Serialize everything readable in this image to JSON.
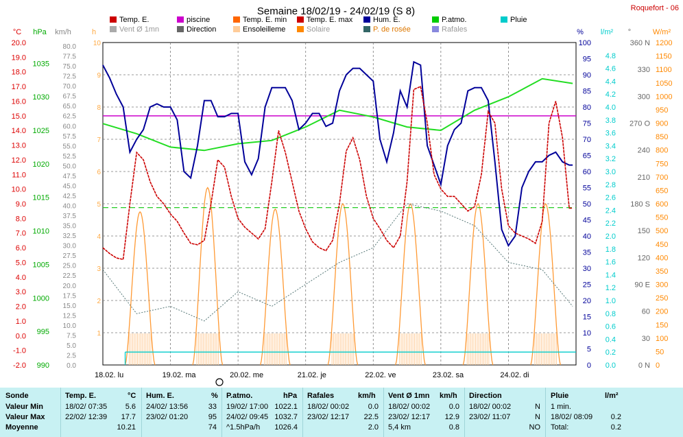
{
  "station": "Roquefort - 06",
  "chart_data": {
    "type": "line",
    "title": "Semaine 18/02/19 - 24/02/19 (S 8)",
    "x_labels": [
      "18.02. lu",
      "19.02. ma",
      "20.02. me",
      "21.02. je",
      "22.02. ve",
      "23.02. sa",
      "24.02. di"
    ],
    "grid": true,
    "legend": [
      {
        "label": "Temp. E.",
        "color": "#cc0000"
      },
      {
        "label": "piscine",
        "color": "#cc00cc"
      },
      {
        "label": "Temp. E. min",
        "color": "#ff6600"
      },
      {
        "label": "Temp. E. max",
        "color": "#cc0000"
      },
      {
        "label": "Hum. E.",
        "color": "#000099"
      },
      {
        "label": "P.atmo.",
        "color": "#00cc00"
      },
      {
        "label": "Pluie",
        "color": "#00cccc"
      },
      {
        "label": "Vent Ø 1mn",
        "color": "#aaaaaa"
      },
      {
        "label": "Direction",
        "color": "#666666"
      },
      {
        "label": "Ensoleilleme",
        "color": "#ffcc99"
      },
      {
        "label": "Solaire",
        "color": "#ff8800"
      },
      {
        "label": "P. de rosée",
        "color": "#336666"
      },
      {
        "label": "Rafales",
        "color": "#8888dd"
      }
    ],
    "axes": {
      "temp": {
        "unit": "°C",
        "color": "#dd0000",
        "min": -2,
        "max": 20,
        "ticks": [
          "20.0",
          "19.0",
          "18.0",
          "17.0",
          "16.0",
          "15.0",
          "14.0",
          "13.0",
          "12.0",
          "11.0",
          "10.0",
          "9.0",
          "8.0",
          "7.0",
          "6.0",
          "5.0",
          "4.0",
          "3.0",
          "2.0",
          "1.0",
          "0.0",
          "-1.0",
          "-2.0"
        ]
      },
      "pressure": {
        "unit": "hPa",
        "color": "#00aa00",
        "min": 990,
        "max": 1038.1,
        "ticks": [
          "1035",
          "1030",
          "1025",
          "1020",
          "1015",
          "1010",
          "1005",
          "1000",
          "995",
          "990"
        ]
      },
      "wind": {
        "unit": "km/h",
        "color": "#888888",
        "min": 0,
        "max": 80,
        "ticks": [
          "80.0",
          "77.5",
          "75.0",
          "72.5",
          "70.0",
          "67.5",
          "65.0",
          "62.5",
          "60.0",
          "57.5",
          "55.0",
          "52.5",
          "50.0",
          "47.5",
          "45.0",
          "42.5",
          "40.0",
          "37.5",
          "35.0",
          "32.5",
          "30.0",
          "27.5",
          "25.0",
          "22.5",
          "20.0",
          "17.5",
          "15.0",
          "12.5",
          "10.0",
          "7.5",
          "5.0",
          "2.5",
          "0.0"
        ]
      },
      "sun": {
        "unit": "h",
        "color": "#ffaa44",
        "min": 0,
        "max": 10,
        "ticks": [
          "10",
          "9",
          "8",
          "7",
          "6",
          "5",
          "4",
          "3",
          "2",
          "1"
        ]
      },
      "humidity": {
        "unit": "%",
        "color": "#000099",
        "min": 0,
        "max": 100,
        "ticks": [
          "100",
          "95",
          "90",
          "85",
          "80",
          "75",
          "70",
          "65",
          "60",
          "55",
          "50",
          "45",
          "40",
          "35",
          "30",
          "25",
          "20",
          "15",
          "10",
          "5",
          "0"
        ]
      },
      "rain": {
        "unit": "l/m²",
        "color": "#00cccc",
        "min": 0,
        "max": 5,
        "ticks": [
          "4.8",
          "4.6",
          "4.4",
          "4.2",
          "4.0",
          "3.8",
          "3.6",
          "3.4",
          "3.2",
          "3.0",
          "2.8",
          "2.6",
          "2.4",
          "2.2",
          "2.0",
          "1.8",
          "1.6",
          "1.4",
          "1.2",
          "1.0",
          "0.8",
          "0.6",
          "0.4",
          "0.2",
          "0.0"
        ]
      },
      "direction": {
        "unit": "°",
        "color": "#666666",
        "ticks": [
          "360 N",
          "330",
          "300",
          "270 O",
          "240",
          "210",
          "180 S",
          "150",
          "120",
          "90 E",
          "60",
          "30",
          "0 N"
        ]
      },
      "solar": {
        "unit": "W/m²",
        "color": "#ff8800",
        "min": 0,
        "max": 1200,
        "ticks": [
          "1200",
          "1150",
          "1100",
          "1050",
          "1000",
          "950",
          "900",
          "850",
          "800",
          "750",
          "700",
          "650",
          "600",
          "550",
          "500",
          "450",
          "400",
          "350",
          "300",
          "250",
          "200",
          "150",
          "100",
          "50",
          "0"
        ]
      }
    },
    "series": {
      "temp": {
        "x": [
          0,
          0.1,
          0.2,
          0.3,
          0.4,
          0.5,
          0.6,
          0.7,
          0.8,
          0.9,
          1.0,
          1.1,
          1.2,
          1.3,
          1.4,
          1.5,
          1.6,
          1.7,
          1.8,
          1.9,
          2.0,
          2.1,
          2.2,
          2.3,
          2.4,
          2.5,
          2.6,
          2.7,
          2.8,
          2.9,
          3.0,
          3.1,
          3.2,
          3.3,
          3.4,
          3.5,
          3.6,
          3.7,
          3.8,
          3.9,
          4.0,
          4.1,
          4.2,
          4.3,
          4.4,
          4.5,
          4.6,
          4.7,
          4.8,
          4.9,
          5.0,
          5.1,
          5.2,
          5.3,
          5.4,
          5.5,
          5.6,
          5.7,
          5.8,
          5.9,
          6.0,
          6.1,
          6.2,
          6.3,
          6.4,
          6.5,
          6.6,
          6.7,
          6.8,
          6.9,
          6.95
        ],
        "y": [
          6.0,
          5.6,
          5.3,
          5.2,
          9.0,
          12.5,
          12.0,
          10.5,
          9.5,
          9.0,
          8.3,
          7.8,
          7.0,
          6.3,
          6.2,
          6.5,
          9.0,
          12.0,
          11.5,
          9.5,
          8.0,
          7.4,
          7.0,
          6.6,
          7.3,
          10.5,
          14.0,
          12.5,
          10.5,
          8.5,
          7.3,
          6.4,
          6.0,
          5.8,
          6.5,
          9.0,
          12.6,
          13.5,
          12.0,
          9.5,
          8.0,
          7.3,
          6.5,
          6.0,
          6.8,
          10.5,
          16.8,
          17.0,
          14.5,
          11.0,
          10.0,
          9.5,
          9.5,
          9.0,
          8.5,
          8.8,
          11.0,
          15.3,
          14.5,
          10.0,
          7.5,
          7.0,
          6.8,
          6.6,
          6.3,
          7.8,
          14.5,
          16.0,
          13.5,
          8.7,
          8.7
        ]
      },
      "humidity": {
        "x": [
          0,
          0.1,
          0.2,
          0.3,
          0.4,
          0.5,
          0.6,
          0.7,
          0.8,
          0.9,
          1.0,
          1.1,
          1.2,
          1.3,
          1.4,
          1.5,
          1.6,
          1.7,
          1.8,
          1.9,
          2.0,
          2.1,
          2.2,
          2.3,
          2.4,
          2.5,
          2.6,
          2.7,
          2.8,
          2.9,
          3.0,
          3.1,
          3.2,
          3.3,
          3.4,
          3.5,
          3.6,
          3.7,
          3.8,
          3.9,
          4.0,
          4.1,
          4.2,
          4.3,
          4.4,
          4.5,
          4.6,
          4.7,
          4.8,
          4.9,
          5.0,
          5.1,
          5.2,
          5.3,
          5.4,
          5.5,
          5.6,
          5.7,
          5.8,
          5.9,
          6.0,
          6.1,
          6.2,
          6.3,
          6.4,
          6.5,
          6.6,
          6.7,
          6.8,
          6.9,
          6.95
        ],
        "y": [
          93,
          89,
          84,
          80,
          66,
          70,
          73,
          80,
          81,
          80,
          80,
          76,
          60,
          58,
          68,
          82,
          82,
          77,
          77,
          78,
          78,
          63,
          59,
          64,
          80,
          86,
          86,
          86,
          82,
          73,
          75,
          78,
          78,
          74,
          75,
          85,
          90,
          92,
          92,
          90,
          88,
          70,
          63,
          72,
          85,
          80,
          94,
          93,
          68,
          62,
          56,
          68,
          73,
          75,
          85,
          86,
          86,
          82,
          63,
          42,
          37,
          40,
          55,
          60,
          63,
          63,
          65,
          66,
          63,
          62,
          62
        ]
      },
      "pressure": {
        "x": [
          0,
          0.5,
          1.0,
          1.5,
          2.0,
          2.5,
          3.0,
          3.5,
          4.0,
          4.5,
          5.0,
          5.5,
          6.0,
          6.5,
          6.95
        ],
        "y": [
          1026.0,
          1024.5,
          1022.5,
          1022.0,
          1023.0,
          1023.5,
          1025.5,
          1028.0,
          1027.0,
          1025.5,
          1025.0,
          1028.0,
          1030.0,
          1032.7,
          1032.0
        ]
      },
      "dew_point": {
        "x": [
          0,
          0.5,
          1.0,
          1.5,
          2.0,
          2.5,
          3.0,
          3.5,
          4.0,
          4.5,
          5.0,
          5.5,
          6.0,
          6.5,
          6.95
        ],
        "y": [
          4.5,
          1.5,
          2.0,
          1.0,
          3.0,
          2.0,
          3.5,
          5.0,
          6.0,
          9.0,
          8.5,
          7.5,
          5.0,
          4.5,
          2.0
        ]
      },
      "solar_peaks": [
        {
          "day": 0,
          "value": 570
        },
        {
          "day": 1,
          "value": 660
        },
        {
          "day": 2,
          "value": 580
        },
        {
          "day": 3,
          "value": 600
        },
        {
          "day": 4,
          "value": 600
        },
        {
          "day": 5,
          "value": 600
        },
        {
          "day": 6,
          "value": 600
        }
      ],
      "piscine_level": 15.0,
      "rain_total": 0.2
    }
  },
  "stats": {
    "headers": {
      "sonde": "Sonde",
      "temp": "Temp. E.",
      "temp_unit": "°C",
      "hum": "Hum. E.",
      "hum_unit": "%",
      "patmo": "P.atmo.",
      "patmo_unit": "hPa",
      "rafales": "Rafales",
      "rafales_unit": "km/h",
      "vent": "Vent Ø 1mn",
      "vent_unit": "km/h",
      "direction": "Direction",
      "pluie": "Pluie",
      "pluie_unit": "l/m²"
    },
    "rows": [
      {
        "label": "Valeur Min",
        "temp_t": "18/02/ 07:35",
        "temp_v": "5.6",
        "hum_t": "24/02/ 13:56",
        "hum_v": "33",
        "patmo_t": "19/02/ 17:00",
        "patmo_v": "1022.1",
        "raf_t": "18/02/ 00:02",
        "raf_v": "0.0",
        "vent_t": "18/02/ 00:02",
        "vent_v": "0.0",
        "dir_t": "18/02/ 00:02",
        "dir_v": "N",
        "pluie_t": "1 min.",
        "pluie_v": ""
      },
      {
        "label": "Valeur Max",
        "temp_t": "22/02/ 12:39",
        "temp_v": "17.7",
        "hum_t": "23/02/ 01:20",
        "hum_v": "95",
        "patmo_t": "24/02/ 09:45",
        "patmo_v": "1032.7",
        "raf_t": "23/02/ 12:17",
        "raf_v": "22.5",
        "vent_t": "23/02/ 12:17",
        "vent_v": "12.9",
        "dir_t": "23/02/ 11:07",
        "dir_v": "N",
        "pluie_t": "18/02/ 08:09",
        "pluie_v": "0.2"
      },
      {
        "label": "Moyenne",
        "temp_t": "",
        "temp_v": "10.21",
        "hum_t": "",
        "hum_v": "74",
        "patmo_t": "^1.5hPa/h",
        "patmo_v": "1026.4",
        "raf_t": "",
        "raf_v": "2.0",
        "vent_t": "5,4 km",
        "vent_v": "0.8",
        "dir_t": "",
        "dir_v": "NO",
        "pluie_t": "Total:",
        "pluie_v": "0.2"
      }
    ]
  }
}
